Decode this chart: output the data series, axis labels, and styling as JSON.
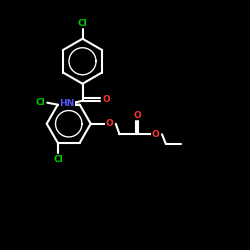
{
  "bg_color": "#000000",
  "bond_color": "#ffffff",
  "bond_width": 1.5,
  "atom_colors": {
    "Cl": "#00cc00",
    "O": "#ff3333",
    "N": "#5555ff",
    "H": "#ffffff",
    "C": "#ffffff"
  },
  "font_size": 6.5,
  "figsize": [
    2.5,
    2.5
  ],
  "dpi": 100
}
